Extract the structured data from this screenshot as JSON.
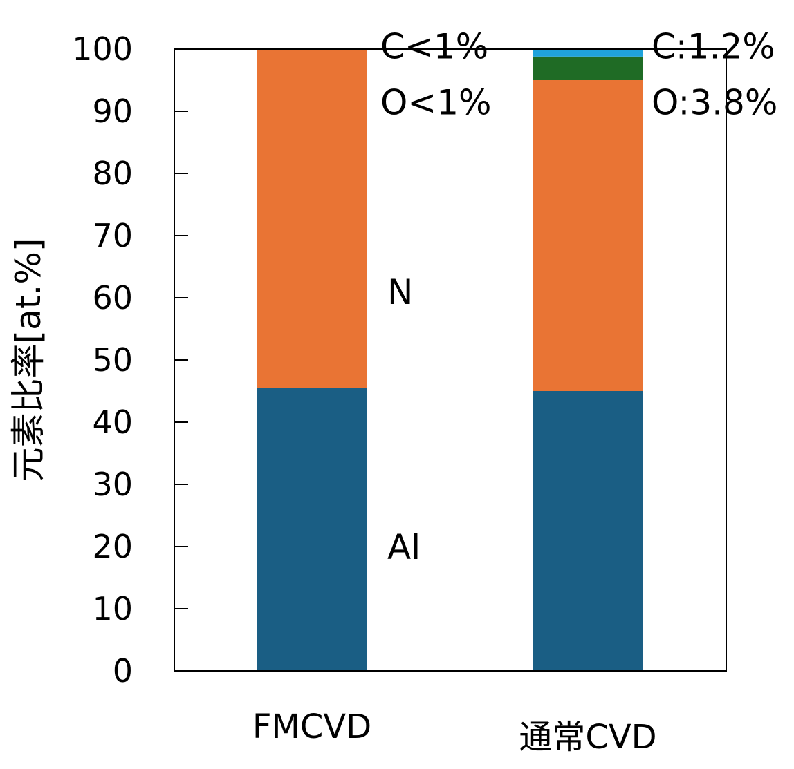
{
  "chart_data": {
    "type": "bar",
    "stacked": true,
    "title": "",
    "xlabel": "",
    "ylabel": "元素比率[at.%]",
    "ylim": [
      0,
      100
    ],
    "yticks": [
      0,
      10,
      20,
      30,
      40,
      50,
      60,
      70,
      80,
      90,
      100
    ],
    "grid": false,
    "legend": "none",
    "categories": [
      "FMCVD",
      "通常CVD"
    ],
    "series": [
      {
        "name": "Al",
        "color": "#1a5e84",
        "values": [
          45.5,
          45.0
        ]
      },
      {
        "name": "N",
        "color": "#e97434",
        "values": [
          54.3,
          50.0
        ]
      },
      {
        "name": "O",
        "color": "#1f6b25",
        "values": [
          0.0,
          3.8
        ]
      },
      {
        "name": "C",
        "color": "#1fa3dc",
        "values": [
          0.2,
          1.2
        ]
      }
    ],
    "annotations": [
      {
        "id": "c_fm",
        "text": "C<1%",
        "y": 100.5
      },
      {
        "id": "o_fm",
        "text": "O<1%",
        "y": 91.5
      },
      {
        "id": "c_cvd",
        "text": "C:1.2%",
        "y": 100.5
      },
      {
        "id": "o_cvd",
        "text": "O:3.8%",
        "y": 91.5
      },
      {
        "id": "n",
        "text": "N",
        "y": 61.0
      },
      {
        "id": "al",
        "text": "Al",
        "y": 20.0
      }
    ]
  }
}
